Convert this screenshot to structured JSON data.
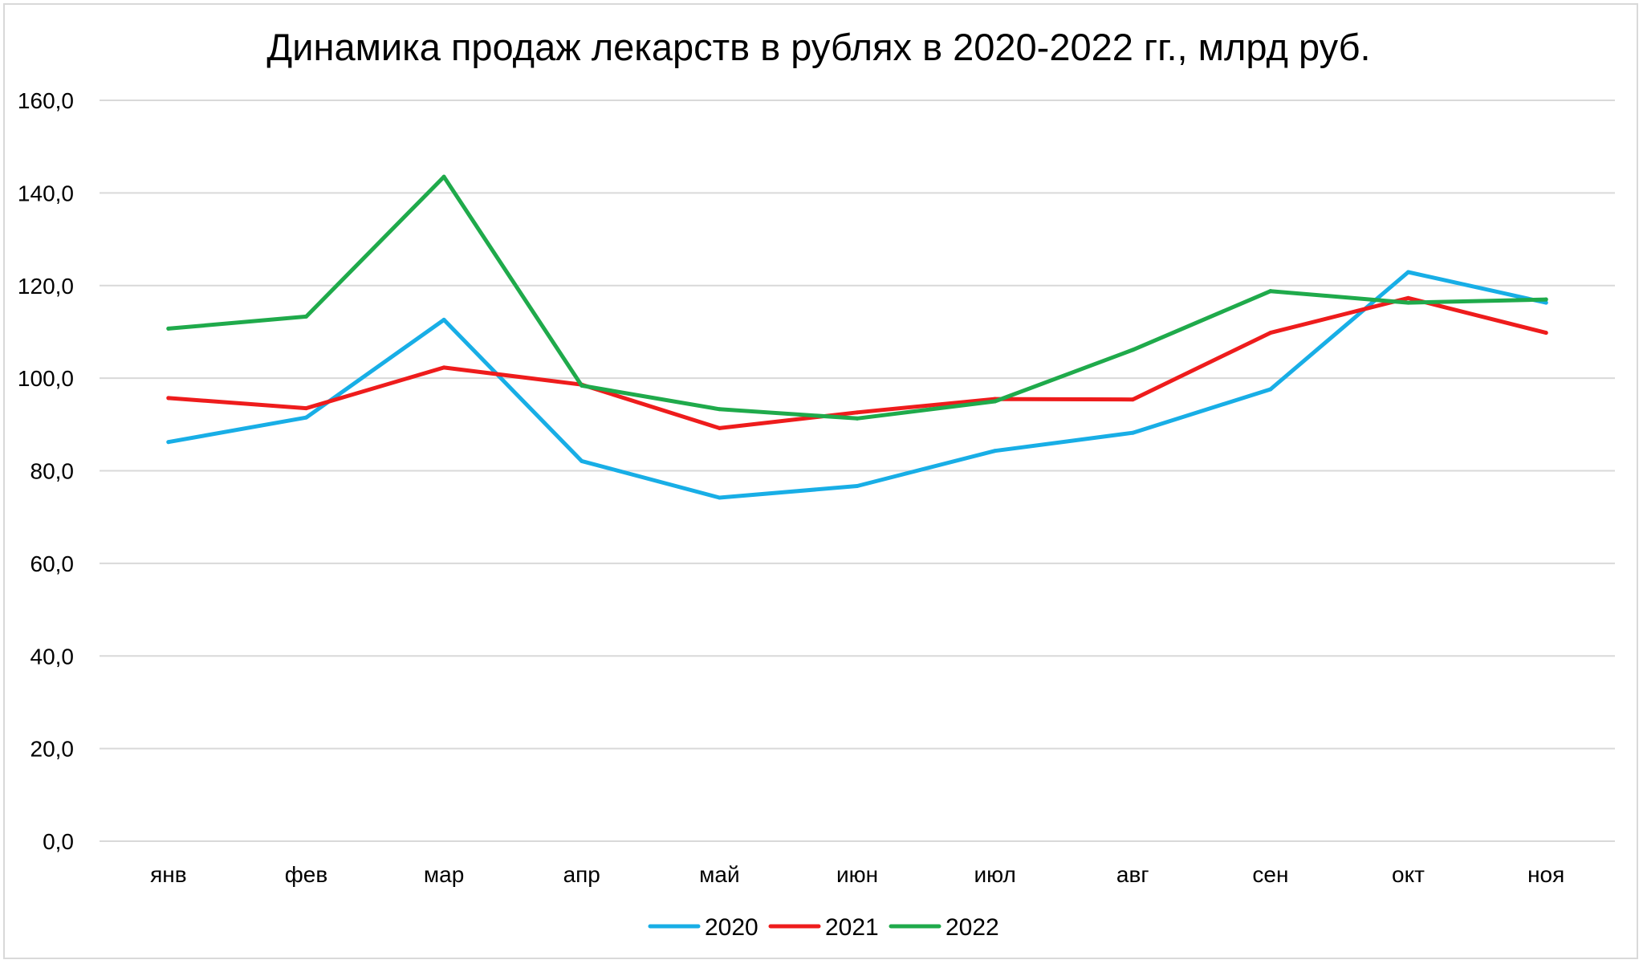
{
  "chart_data": {
    "type": "line",
    "title": "Динамика продаж лекарств в рублях в 2020-2022 гг., млрд руб.",
    "xlabel": "",
    "ylabel": "",
    "categories": [
      "янв",
      "фев",
      "мар",
      "апр",
      "май",
      "июн",
      "июл",
      "авг",
      "сен",
      "окт",
      "ноя"
    ],
    "ylim": [
      0,
      160
    ],
    "yticks": [
      0,
      20,
      40,
      60,
      80,
      100,
      120,
      140,
      160
    ],
    "ytick_labels": [
      "0,0",
      "20,0",
      "40,0",
      "60,0",
      "80,0",
      "100,0",
      "120,0",
      "140,0",
      "160,0"
    ],
    "grid": true,
    "legend_position": "bottom",
    "series": [
      {
        "name": "2020",
        "color": "#18aee6",
        "values": [
          86.2,
          91.5,
          112.6,
          82.1,
          74.2,
          76.7,
          84.3,
          88.2,
          97.6,
          122.9,
          116.3
        ]
      },
      {
        "name": "2021",
        "color": "#ee1c1c",
        "values": [
          95.7,
          93.5,
          102.3,
          98.6,
          89.2,
          92.6,
          95.5,
          95.4,
          109.8,
          117.3,
          109.8
        ]
      },
      {
        "name": "2022",
        "color": "#1faa4b",
        "values": [
          110.7,
          113.3,
          143.5,
          98.4,
          93.3,
          91.3,
          95.0,
          106.1,
          118.8,
          116.3,
          117.0
        ]
      }
    ]
  }
}
